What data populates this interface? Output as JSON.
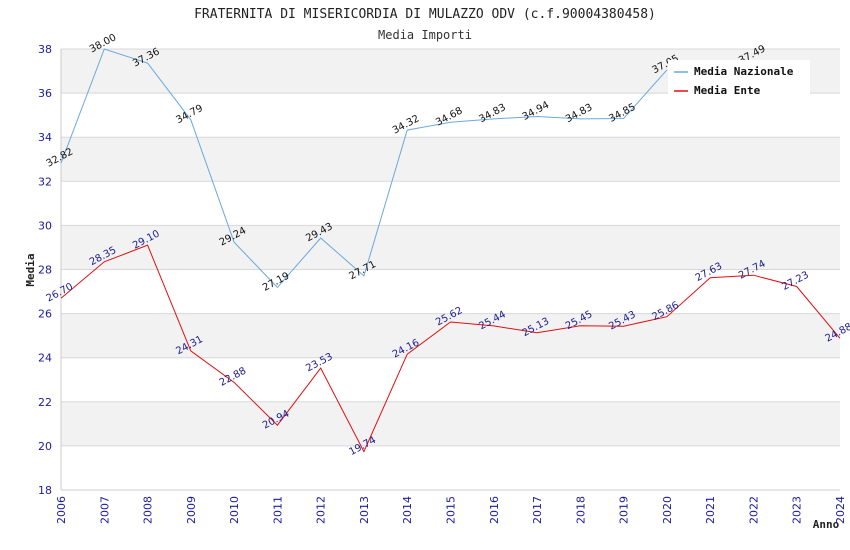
{
  "chart_data": {
    "type": "line",
    "title": "FRATERNITA DI MISERICORDIA DI MULAZZO ODV (c.f.90004380458)",
    "subtitle": "Media Importi",
    "xlabel": "Anno",
    "ylabel": "Media",
    "ylim": [
      18,
      38
    ],
    "yticks": [
      18,
      20,
      22,
      24,
      26,
      28,
      30,
      32,
      34,
      36,
      38
    ],
    "x": [
      "2006",
      "2007",
      "2008",
      "2009",
      "2010",
      "2011",
      "2012",
      "2013",
      "2014",
      "2015",
      "2016",
      "2017",
      "2018",
      "2019",
      "2020",
      "2021",
      "2022",
      "2023",
      "2024"
    ],
    "grid": true,
    "legend_position": "top-right",
    "series": [
      {
        "name": "Media Nazionale",
        "color": "#6aa8e0",
        "label_color": "#111111",
        "values": [
          32.82,
          38.0,
          37.36,
          34.79,
          29.24,
          27.19,
          29.43,
          27.71,
          34.32,
          34.68,
          34.83,
          34.94,
          34.83,
          34.85,
          37.05,
          null,
          37.49,
          null,
          null
        ],
        "labels": [
          "32.82",
          "38.00",
          "37.36",
          "34.79",
          "29.24",
          "27.19",
          "29.43",
          "27.71",
          "34.32",
          "34.68",
          "34.83",
          "34.94",
          "34.83",
          "34.85",
          "37.05",
          "",
          "37.49",
          "",
          ""
        ]
      },
      {
        "name": "Media Ente",
        "color": "#e01010",
        "label_color": "#1a1a90",
        "values": [
          26.7,
          28.35,
          29.1,
          24.31,
          22.88,
          20.94,
          23.53,
          19.74,
          24.16,
          25.62,
          25.44,
          25.13,
          25.45,
          25.43,
          25.86,
          27.63,
          27.74,
          27.23,
          24.88
        ],
        "labels": [
          "26.70",
          "28.35",
          "29.10",
          "24.31",
          "22.88",
          "20.94",
          "23.53",
          "19.74",
          "24.16",
          "25.62",
          "25.44",
          "25.13",
          "25.45",
          "25.43",
          "25.86",
          "27.63",
          "27.74",
          "27.23",
          "24.88"
        ]
      }
    ]
  }
}
